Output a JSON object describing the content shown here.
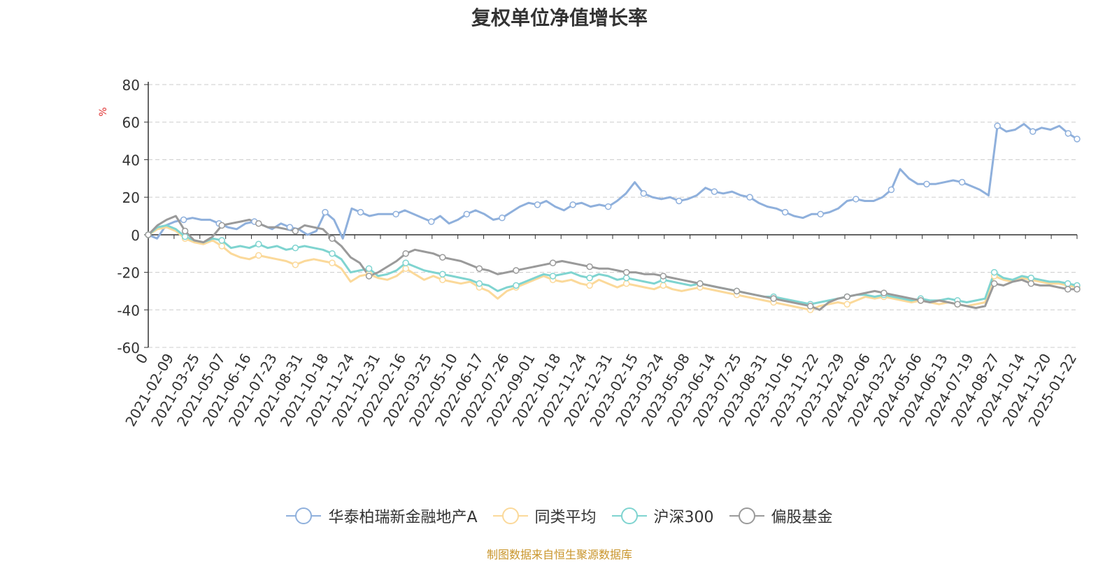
{
  "chart_data": {
    "type": "line",
    "title": "复权单位净值增长率",
    "ylabel": "%",
    "ylim": [
      -60,
      80
    ],
    "yticks": [
      -60,
      -40,
      -20,
      0,
      20,
      40,
      60,
      80
    ],
    "grid": true,
    "legend_position": "bottom",
    "x_tick_labels": [
      "0",
      "2021-02-09",
      "2021-03-25",
      "2021-05-07",
      "2021-06-16",
      "2021-07-23",
      "2021-08-31",
      "2021-10-18",
      "2021-11-24",
      "2021-12-31",
      "2022-02-16",
      "2022-03-25",
      "2022-05-10",
      "2022-06-17",
      "2022-07-26",
      "2022-09-01",
      "2022-10-18",
      "2022-11-24",
      "2022-12-31",
      "2023-02-15",
      "2023-03-24",
      "2023-05-08",
      "2023-06-14",
      "2023-07-25",
      "2023-08-31",
      "2023-10-16",
      "2023-11-22",
      "2023-12-29",
      "2024-02-06",
      "2024-03-22",
      "2024-05-06",
      "2024-06-13",
      "2024-07-19",
      "2024-08-27",
      "2024-10-14",
      "2024-11-20",
      "2025-01-22"
    ],
    "series": [
      {
        "name": "华泰柏瑞新金融地产A",
        "color": "#8fb0dc",
        "values": [
          0,
          -2,
          5,
          7,
          8,
          9,
          8,
          8,
          6,
          4,
          3,
          6,
          7,
          5,
          3,
          6,
          4,
          3,
          0,
          2,
          12,
          8,
          -2,
          14,
          12,
          10,
          11,
          11,
          11,
          13,
          11,
          9,
          7,
          10,
          6,
          8,
          11,
          13,
          11,
          8,
          9,
          12,
          15,
          17,
          16,
          18,
          15,
          13,
          16,
          17,
          15,
          16,
          15,
          18,
          22,
          28,
          22,
          20,
          19,
          20,
          18,
          19,
          21,
          25,
          23,
          22,
          23,
          21,
          20,
          17,
          15,
          14,
          12,
          10,
          9,
          11,
          11,
          12,
          14,
          18,
          19,
          18,
          18,
          20,
          24,
          35,
          30,
          27,
          27,
          27,
          28,
          29,
          28,
          26,
          24,
          21,
          58,
          55,
          56,
          59,
          55,
          57,
          56,
          58,
          54,
          51
        ]
      },
      {
        "name": "同类平均",
        "color": "#fbd99a",
        "values": [
          0,
          3,
          4,
          2,
          -2,
          -4,
          -5,
          -3,
          -6,
          -10,
          -12,
          -13,
          -11,
          -12,
          -13,
          -14,
          -16,
          -14,
          -13,
          -14,
          -15,
          -18,
          -25,
          -22,
          -21,
          -23,
          -24,
          -22,
          -18,
          -21,
          -24,
          -22,
          -24,
          -25,
          -26,
          -25,
          -28,
          -30,
          -34,
          -30,
          -28,
          -26,
          -24,
          -22,
          -24,
          -25,
          -24,
          -26,
          -27,
          -24,
          -26,
          -28,
          -26,
          -27,
          -28,
          -29,
          -27,
          -29,
          -30,
          -29,
          -28,
          -29,
          -30,
          -31,
          -32,
          -33,
          -34,
          -35,
          -36,
          -37,
          -38,
          -39,
          -40,
          -38,
          -37,
          -36,
          -37,
          -35,
          -33,
          -34,
          -33,
          -34,
          -35,
          -36,
          -35,
          -36,
          -37,
          -36,
          -37,
          -38,
          -37,
          -36,
          -22,
          -24,
          -25,
          -23,
          -24,
          -25,
          -26,
          -26,
          -27,
          -28
        ]
      },
      {
        "name": "沪深300",
        "color": "#7fd4d0",
        "values": [
          0,
          4,
          5,
          3,
          -1,
          -3,
          -4,
          -2,
          -3,
          -7,
          -6,
          -7,
          -5,
          -7,
          -6,
          -8,
          -7,
          -6,
          -7,
          -8,
          -10,
          -13,
          -20,
          -19,
          -18,
          -22,
          -21,
          -19,
          -15,
          -17,
          -19,
          -20,
          -21,
          -22,
          -23,
          -24,
          -26,
          -27,
          -30,
          -28,
          -27,
          -25,
          -23,
          -21,
          -22,
          -21,
          -20,
          -22,
          -23,
          -21,
          -22,
          -24,
          -23,
          -24,
          -25,
          -26,
          -24,
          -25,
          -26,
          -27,
          -26,
          -27,
          -28,
          -29,
          -30,
          -31,
          -32,
          -33,
          -33,
          -34,
          -35,
          -36,
          -37,
          -36,
          -35,
          -34,
          -33,
          -32,
          -32,
          -33,
          -32,
          -33,
          -34,
          -35,
          -34,
          -35,
          -35,
          -34,
          -35,
          -36,
          -35,
          -34,
          -20,
          -23,
          -24,
          -22,
          -23,
          -24,
          -25,
          -25,
          -26,
          -27
        ]
      },
      {
        "name": "偏股基金",
        "color": "#9a9a9a",
        "values": [
          0,
          5,
          8,
          10,
          2,
          -3,
          -4,
          -1,
          5,
          6,
          7,
          8,
          6,
          4,
          4,
          3,
          2,
          5,
          4,
          3,
          -2,
          -6,
          -12,
          -15,
          -22,
          -20,
          -17,
          -14,
          -10,
          -8,
          -9,
          -10,
          -12,
          -13,
          -14,
          -16,
          -18,
          -19,
          -21,
          -20,
          -19,
          -18,
          -17,
          -16,
          -15,
          -14,
          -15,
          -16,
          -17,
          -18,
          -18,
          -19,
          -20,
          -20,
          -21,
          -21,
          -22,
          -23,
          -24,
          -25,
          -26,
          -27,
          -28,
          -29,
          -30,
          -31,
          -32,
          -33,
          -34,
          -35,
          -36,
          -37,
          -38,
          -40,
          -36,
          -34,
          -33,
          -32,
          -31,
          -30,
          -31,
          -32,
          -33,
          -34,
          -35,
          -36,
          -35,
          -36,
          -37,
          -38,
          -39,
          -38,
          -26,
          -27,
          -25,
          -24,
          -26,
          -27,
          -27,
          -28,
          -29,
          -29
        ]
      }
    ]
  },
  "legend": {
    "items": [
      "华泰柏瑞新金融地产A",
      "同类平均",
      "沪深300",
      "偏股基金"
    ]
  },
  "source_note": "制图数据来自恒生聚源数据库"
}
